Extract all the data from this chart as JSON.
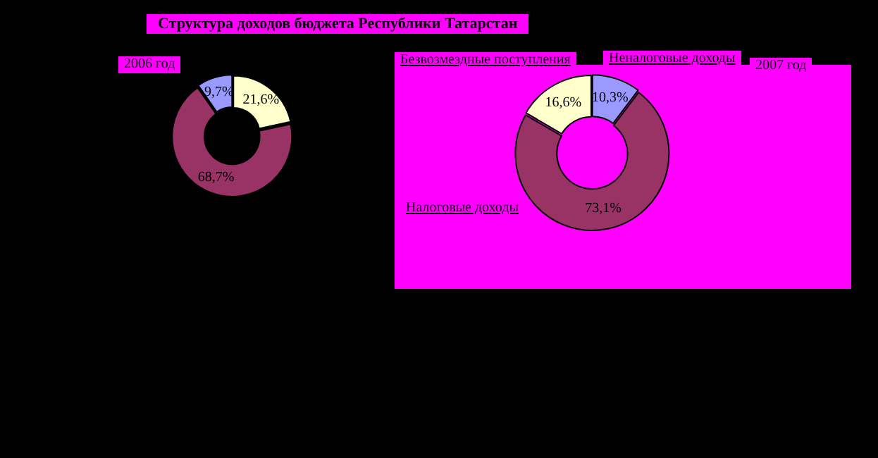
{
  "chart_data": [
    {
      "type": "donut",
      "title": "Структура доходов бюджета Республики Татарстан",
      "subtitle": "2006 год",
      "categories": [
        null,
        null,
        null
      ],
      "values": [
        21.6,
        68.7,
        9.7
      ],
      "colors": [
        "#ffffcc",
        "#993366",
        "#9999ff"
      ],
      "value_labels": [
        "21,6%",
        "68,7%",
        "9,7%"
      ],
      "legend": false
    },
    {
      "type": "donut",
      "subtitle": "2007 год",
      "categories": [
        "Неналоговые доходы",
        "Налоговые доходы",
        "Безвозмездные поступления"
      ],
      "values": [
        10.3,
        73.1,
        16.6
      ],
      "colors": [
        "#9999ff",
        "#993366",
        "#ffffcc"
      ],
      "value_labels": [
        "10,3%",
        "73,1%",
        "16,6%"
      ],
      "legend": false
    }
  ]
}
